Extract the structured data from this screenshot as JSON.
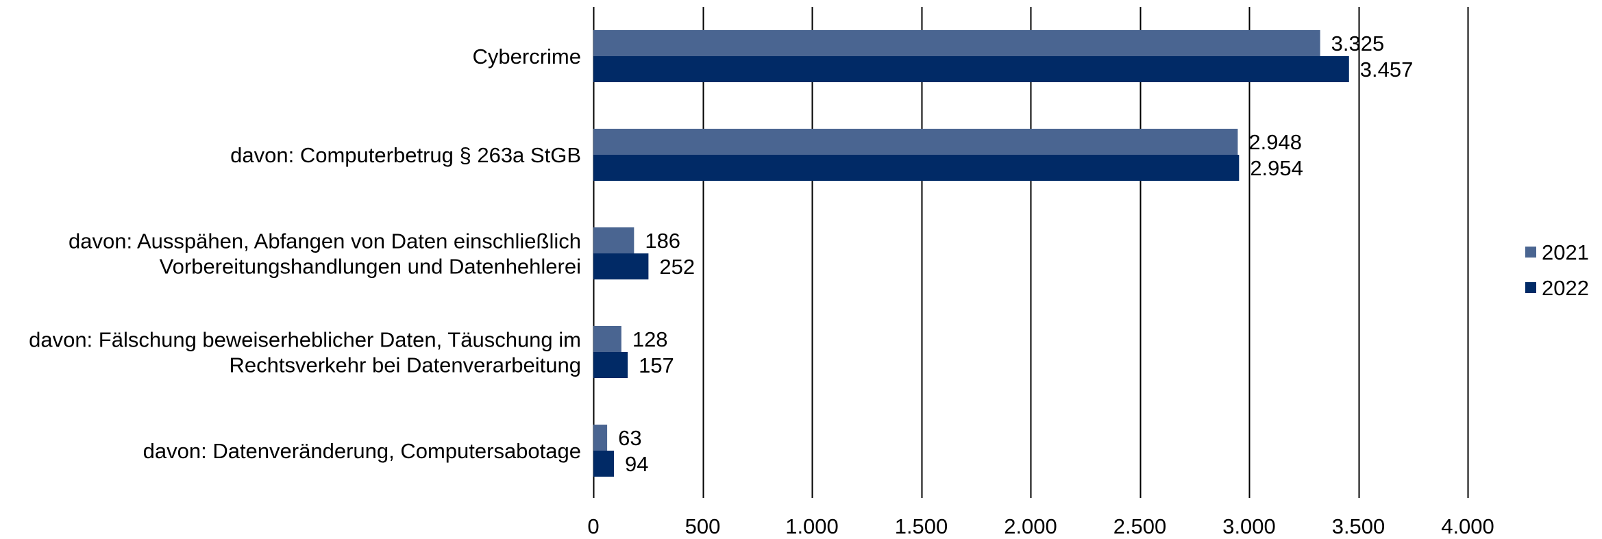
{
  "chart_data": {
    "type": "bar",
    "orientation": "horizontal",
    "categories": [
      [
        "Cybercrime"
      ],
      [
        "davon: Computerbetrug  § 263a StGB"
      ],
      [
        "davon: Ausspähen, Abfangen von Daten einschließlich",
        "Vorbereitungshandlungen und Datenhehlerei"
      ],
      [
        "davon: Fälschung beweiserheblicher Daten, Täuschung im",
        "Rechtsverkehr bei Datenverarbeitung"
      ],
      [
        "davon: Datenveränderung, Computersabotage"
      ]
    ],
    "series": [
      {
        "name": "2021",
        "color": "#4a6591",
        "values": [
          3325,
          2948,
          186,
          128,
          63
        ],
        "labels": [
          "3.325",
          "2.948",
          "186",
          "128",
          "63"
        ]
      },
      {
        "name": "2022",
        "color": "#012a66",
        "values": [
          3457,
          2954,
          252,
          157,
          94
        ],
        "labels": [
          "3.457",
          "2.954",
          "252",
          "157",
          "94"
        ]
      }
    ],
    "xlim": [
      0,
      4000
    ],
    "xticks": [
      0,
      500,
      1000,
      1500,
      2000,
      2500,
      3000,
      3500,
      4000
    ],
    "xtick_labels": [
      "0",
      "500",
      "1.000",
      "1.500",
      "2.000",
      "2.500",
      "3.000",
      "3.500",
      "4.000"
    ],
    "gridlines": "vertical",
    "legend_position": "right"
  }
}
